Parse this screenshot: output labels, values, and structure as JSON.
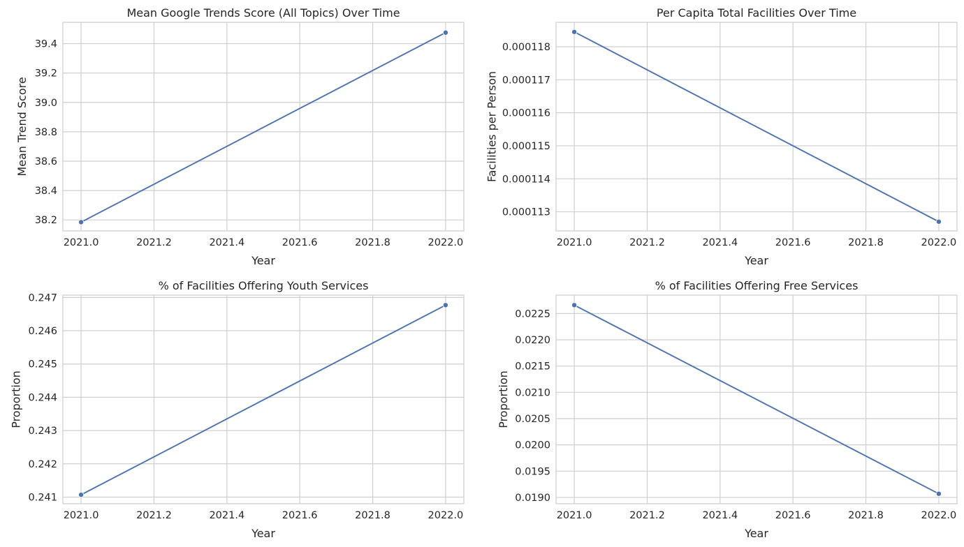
{
  "style": {
    "series_color": "#4c72b0",
    "grid_color": "#cfcfd2",
    "text_color": "#262626"
  },
  "chart_data": [
    {
      "type": "line",
      "title": "Mean Google Trends Score (All Topics) Over Time",
      "xlabel": "Year",
      "ylabel": "Mean Trend Score",
      "x": [
        2021.0,
        2022.0
      ],
      "series": [
        {
          "values": [
            38.185,
            39.475
          ],
          "marker": "circle"
        }
      ],
      "xlim": [
        2020.95,
        2022.05
      ],
      "ylim": [
        38.125,
        39.545
      ],
      "xticks": [
        2021.0,
        2021.2,
        2021.4,
        2021.6,
        2021.8,
        2022.0
      ],
      "xtick_labels": [
        "2021.0",
        "2021.2",
        "2021.4",
        "2021.6",
        "2021.8",
        "2022.0"
      ],
      "yticks": [
        38.2,
        38.4,
        38.6,
        38.8,
        39.0,
        39.2,
        39.4
      ],
      "ytick_labels": [
        "38.2",
        "38.4",
        "38.6",
        "38.8",
        "39.0",
        "39.2",
        "39.4"
      ],
      "grid": true
    },
    {
      "type": "line",
      "title": "Per Capita Total Facilities Over Time",
      "xlabel": "Year",
      "ylabel": "Facilities per Person",
      "x": [
        2021.0,
        2022.0
      ],
      "series": [
        {
          "values": [
            0.00011845,
            0.0001127
          ],
          "marker": "circle"
        }
      ],
      "xlim": [
        2020.95,
        2022.05
      ],
      "ylim": [
        0.00011242,
        0.00011874
      ],
      "xticks": [
        2021.0,
        2021.2,
        2021.4,
        2021.6,
        2021.8,
        2022.0
      ],
      "xtick_labels": [
        "2021.0",
        "2021.2",
        "2021.4",
        "2021.6",
        "2021.8",
        "2022.0"
      ],
      "yticks": [
        0.000113,
        0.000114,
        0.000115,
        0.000116,
        0.000117,
        0.000118
      ],
      "ytick_labels": [
        "0.000113",
        "0.000114",
        "0.000115",
        "0.000116",
        "0.000117",
        "0.000118"
      ],
      "grid": true
    },
    {
      "type": "line",
      "title": "% of Facilities Offering Youth Services",
      "xlabel": "Year",
      "ylabel": "Proportion",
      "x": [
        2021.0,
        2022.0
      ],
      "series": [
        {
          "values": [
            0.24107,
            0.24677
          ],
          "marker": "circle"
        }
      ],
      "xlim": [
        2020.95,
        2022.05
      ],
      "ylim": [
        0.2408,
        0.24707
      ],
      "xticks": [
        2021.0,
        2021.2,
        2021.4,
        2021.6,
        2021.8,
        2022.0
      ],
      "xtick_labels": [
        "2021.0",
        "2021.2",
        "2021.4",
        "2021.6",
        "2021.8",
        "2022.0"
      ],
      "yticks": [
        0.241,
        0.242,
        0.243,
        0.244,
        0.245,
        0.246,
        0.247
      ],
      "ytick_labels": [
        "0.241",
        "0.242",
        "0.243",
        "0.244",
        "0.245",
        "0.246",
        "0.247"
      ],
      "grid": true
    },
    {
      "type": "line",
      "title": "% of Facilities Offering Free Services",
      "xlabel": "Year",
      "ylabel": "Proportion",
      "x": [
        2021.0,
        2022.0
      ],
      "series": [
        {
          "values": [
            0.02266,
            0.01907
          ],
          "marker": "circle"
        }
      ],
      "xlim": [
        2020.95,
        2022.05
      ],
      "ylim": [
        0.01888,
        0.02285
      ],
      "xticks": [
        2021.0,
        2021.2,
        2021.4,
        2021.6,
        2021.8,
        2022.0
      ],
      "xtick_labels": [
        "2021.0",
        "2021.2",
        "2021.4",
        "2021.6",
        "2021.8",
        "2022.0"
      ],
      "yticks": [
        0.019,
        0.0195,
        0.02,
        0.0205,
        0.021,
        0.0215,
        0.022,
        0.0225
      ],
      "ytick_labels": [
        "0.0190",
        "0.0195",
        "0.0200",
        "0.0205",
        "0.0210",
        "0.0215",
        "0.0220",
        "0.0225"
      ],
      "grid": true
    }
  ]
}
